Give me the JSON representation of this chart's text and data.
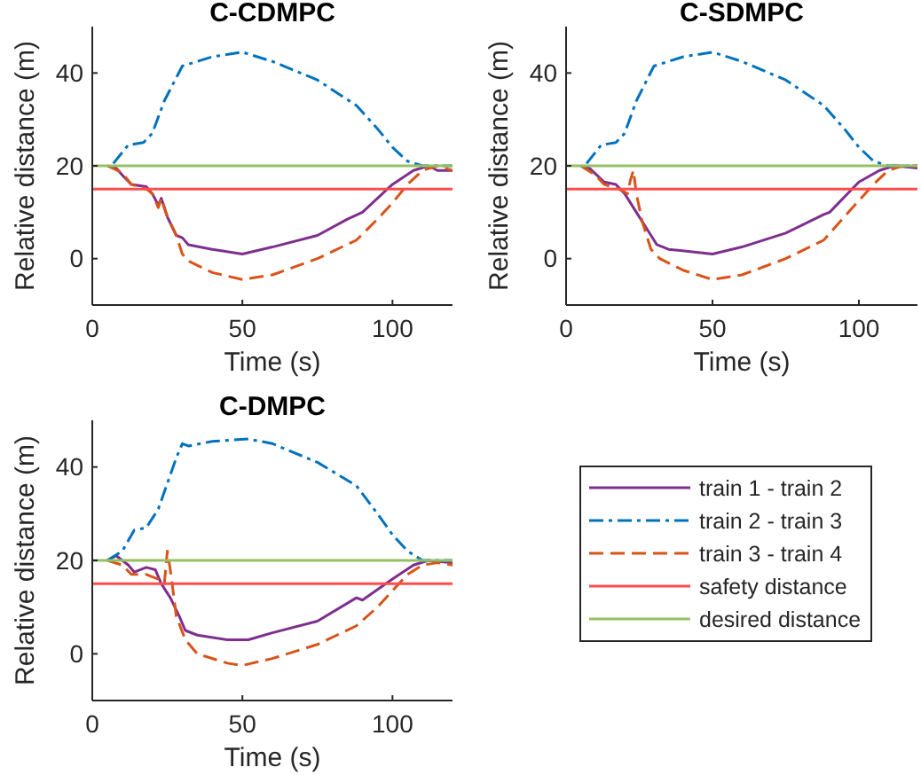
{
  "chart_data": [
    {
      "type": "line",
      "title": "C-CDMPC",
      "xlabel": "Time (s)",
      "ylabel": "Relative distance (m)",
      "xlim": [
        0,
        120
      ],
      "xticks": [
        0,
        50,
        100
      ],
      "ylim": [
        -10,
        50
      ],
      "yticks": [
        0,
        20,
        40
      ],
      "legend": false,
      "series": [
        {
          "color": "#7e2f8e",
          "line_style": "solid",
          "x": [
            5,
            8,
            10,
            13,
            18,
            20,
            22,
            23,
            25,
            28,
            30,
            32,
            40,
            50,
            60,
            75,
            85,
            90,
            100,
            107,
            112,
            115,
            120
          ],
          "values": [
            20,
            19.5,
            18,
            16,
            15.5,
            14,
            11.5,
            13,
            9,
            5,
            4.5,
            3,
            2,
            1,
            2.5,
            5,
            8.5,
            10,
            16,
            19,
            20,
            19,
            19
          ]
        },
        {
          "color": "#0072bd",
          "line_style": "dashdot",
          "x": [
            7,
            12,
            17,
            20,
            24,
            30,
            35,
            40,
            50,
            60,
            75,
            88,
            95,
            100,
            105,
            110,
            115,
            120
          ],
          "values": [
            20.5,
            24.5,
            25,
            27,
            34,
            41.5,
            42.5,
            43.5,
            44.5,
            42.5,
            38.5,
            33,
            28,
            24,
            21,
            20,
            20,
            20
          ]
        },
        {
          "color": "#d95319",
          "line_style": "dashed",
          "x": [
            5,
            10,
            13,
            18,
            20,
            22,
            23,
            25,
            28,
            30,
            32,
            40,
            50,
            60,
            75,
            88,
            95,
            100,
            105,
            110,
            115,
            120
          ],
          "values": [
            20,
            18.5,
            16,
            15,
            14,
            11,
            13,
            9,
            5,
            1,
            -0.5,
            -3,
            -4.5,
            -3.5,
            0,
            4,
            8.5,
            12,
            16,
            19,
            20,
            19
          ]
        },
        {
          "color": "#ff4d4d",
          "line_style": "solid",
          "x": [
            0,
            120
          ],
          "values": [
            15,
            15
          ]
        },
        {
          "color": "#93c263",
          "line_style": "solid",
          "x": [
            0,
            120
          ],
          "values": [
            20,
            20
          ]
        }
      ]
    },
    {
      "type": "line",
      "title": "C-SDMPC",
      "xlabel": "Time (s)",
      "ylabel": "Relative distance (m)",
      "xlim": [
        0,
        120
      ],
      "xticks": [
        0,
        50,
        100
      ],
      "ylim": [
        -10,
        50
      ],
      "yticks": [
        0,
        20,
        40
      ],
      "legend": false,
      "series": [
        {
          "color": "#7e2f8e",
          "line_style": "solid",
          "x": [
            5,
            8,
            13,
            17,
            20,
            24,
            28,
            31,
            35,
            50,
            60,
            75,
            88,
            90,
            100,
            107,
            112,
            120
          ],
          "values": [
            20,
            19.5,
            16.5,
            16,
            14,
            10,
            6,
            3,
            2,
            1,
            2.5,
            5.5,
            9.5,
            10,
            16.5,
            19,
            20,
            19.5
          ]
        },
        {
          "color": "#0072bd",
          "line_style": "dashdot",
          "x": [
            7,
            12,
            17,
            20,
            24,
            30,
            35,
            40,
            50,
            60,
            75,
            88,
            95,
            100,
            105,
            110,
            115,
            120
          ],
          "values": [
            20.5,
            24.5,
            25,
            27,
            34,
            41.5,
            42.5,
            43.5,
            44.5,
            42.5,
            38.5,
            33,
            28,
            24,
            21,
            20,
            20,
            20
          ]
        },
        {
          "color": "#d95319",
          "line_style": "dashed",
          "x": [
            5,
            10,
            13,
            18,
            21,
            22,
            23,
            24,
            26,
            29,
            32,
            40,
            50,
            60,
            75,
            88,
            95,
            100,
            105,
            110,
            115,
            120
          ],
          "values": [
            20,
            18,
            16,
            15,
            14,
            17,
            19,
            14,
            8,
            2,
            0,
            -2.5,
            -4.5,
            -3.5,
            0,
            4,
            9,
            12.5,
            16,
            19,
            20,
            20
          ]
        },
        {
          "color": "#ff4d4d",
          "line_style": "solid",
          "x": [
            0,
            120
          ],
          "values": [
            15,
            15
          ]
        },
        {
          "color": "#93c263",
          "line_style": "solid",
          "x": [
            0,
            120
          ],
          "values": [
            20,
            20
          ]
        }
      ]
    },
    {
      "type": "line",
      "title": "C-DMPC",
      "xlabel": "Time (s)",
      "ylabel": "Relative distance (m)",
      "xlim": [
        0,
        120
      ],
      "xticks": [
        0,
        50,
        100
      ],
      "ylim": [
        -10,
        50
      ],
      "yticks": [
        0,
        20,
        40
      ],
      "legend": "right",
      "series": [
        {
          "name": "train 1 - train 2",
          "color": "#7e2f8e",
          "line_style": "solid",
          "x": [
            5,
            8,
            12,
            14,
            18,
            21,
            23,
            26,
            29,
            31,
            35,
            45,
            52,
            60,
            75,
            88,
            90,
            100,
            107,
            112,
            120
          ],
          "values": [
            20,
            21,
            19,
            17.5,
            18.5,
            18,
            15,
            12,
            8,
            5,
            4,
            3,
            3,
            4.5,
            7,
            12,
            11.5,
            16,
            19,
            20,
            19.5
          ]
        },
        {
          "name": "train 2 - train 3",
          "color": "#0072bd",
          "line_style": "dashdot",
          "x": [
            5,
            10,
            14,
            18,
            22,
            28,
            30,
            32,
            40,
            52,
            60,
            75,
            88,
            95,
            100,
            105,
            110,
            120
          ],
          "values": [
            20,
            22,
            26.5,
            27,
            31,
            42,
            45,
            44.5,
            45.5,
            46,
            45,
            41,
            36,
            30,
            25.5,
            22,
            20,
            20
          ]
        },
        {
          "name": "train 3 - train 4",
          "color": "#d95319",
          "line_style": "dashed",
          "x": [
            5,
            10,
            13,
            18,
            22,
            24,
            25,
            26,
            28,
            31,
            35,
            45,
            50,
            60,
            75,
            88,
            95,
            100,
            105,
            110,
            115,
            120
          ],
          "values": [
            20,
            19,
            17,
            17,
            16,
            15,
            22,
            18,
            8,
            3,
            0,
            -2,
            -2.5,
            -1,
            2,
            6,
            10,
            13.5,
            17,
            19,
            19.5,
            19
          ]
        },
        {
          "name": "safety distance",
          "color": "#ff4d4d",
          "line_style": "solid",
          "x": [
            0,
            120
          ],
          "values": [
            15,
            15
          ]
        },
        {
          "name": "desired distance",
          "color": "#93c263",
          "line_style": "solid",
          "x": [
            0,
            120
          ],
          "values": [
            20,
            20
          ]
        }
      ]
    }
  ]
}
